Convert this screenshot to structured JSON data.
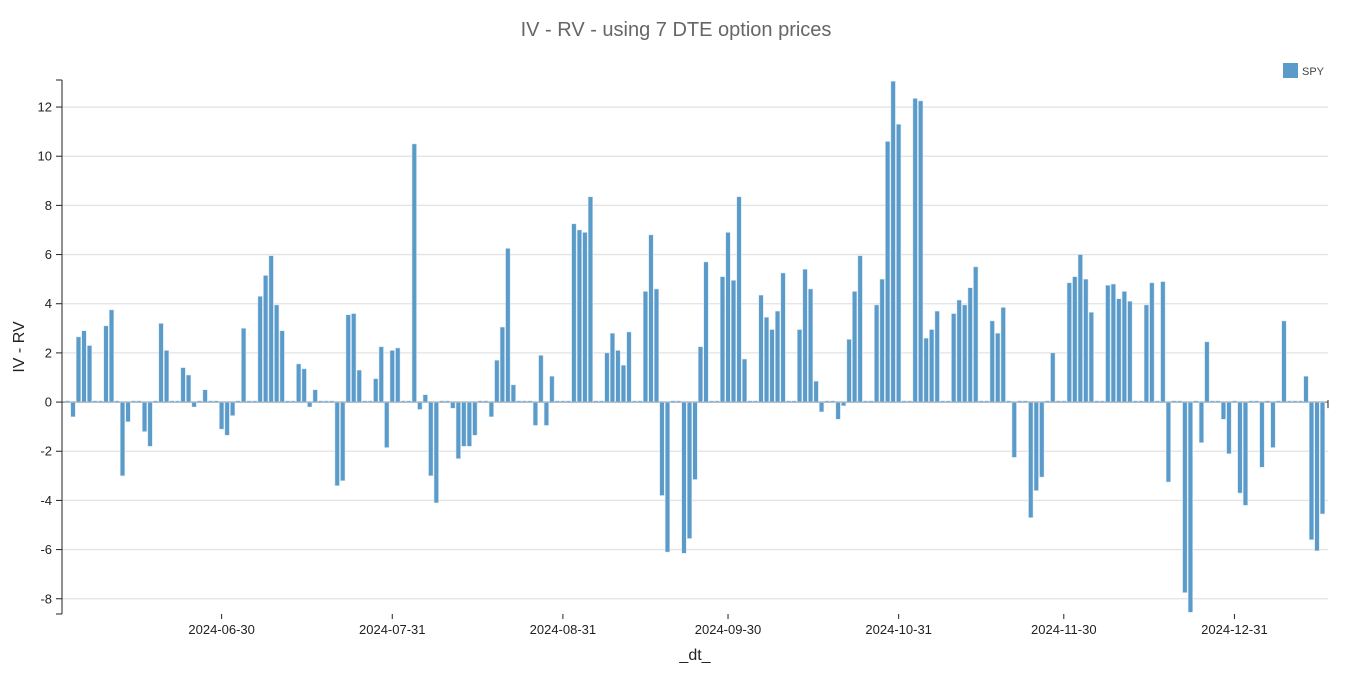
{
  "chart_data": {
    "type": "bar",
    "title": "IV - RV  - using 7 DTE option prices",
    "xlabel": "_dt_",
    "ylabel": "IV - RV",
    "legend": [
      {
        "name": "SPY",
        "color": "#5b9bca"
      }
    ],
    "legend_placement": "top-right",
    "grid": "horizontal",
    "ylim": [
      -8.62,
      13.1
    ],
    "xlim": [
      "2024-06-01",
      "2025-01-17"
    ],
    "yticks": [
      -8,
      -6,
      -4,
      -2,
      0,
      2,
      4,
      6,
      8,
      10,
      12
    ],
    "xticks": [
      "2024-06-30",
      "2024-07-31",
      "2024-08-31",
      "2024-09-30",
      "2024-10-31",
      "2024-11-30",
      "2024-12-31"
    ],
    "x_start": "2024-06-02",
    "x_step_days": 1,
    "series": [
      {
        "name": "SPY",
        "values": [
          0.05,
          -0.6,
          2.65,
          2.9,
          2.3,
          0,
          0,
          3.1,
          3.75,
          0,
          -3.0,
          -0.8,
          0,
          0,
          -1.2,
          -1.8,
          0,
          3.2,
          2.1,
          0,
          0,
          1.4,
          1.1,
          -0.2,
          0,
          0.5,
          0,
          0,
          -1.1,
          -1.35,
          -0.55,
          0,
          3.0,
          0,
          0,
          4.3,
          5.15,
          5.95,
          3.95,
          2.9,
          0,
          0,
          1.55,
          1.35,
          -0.2,
          0.5,
          0.05,
          0,
          0,
          -3.4,
          -3.2,
          3.55,
          3.6,
          1.3,
          0,
          0,
          0.95,
          2.25,
          -1.85,
          2.1,
          2.2,
          0,
          0,
          10.5,
          -0.3,
          0.3,
          -3.0,
          -4.1,
          0,
          0,
          -0.25,
          -2.3,
          -1.8,
          -1.8,
          -1.35,
          0,
          0,
          -0.6,
          1.7,
          3.05,
          6.25,
          0.7,
          0,
          0,
          0,
          -0.95,
          1.9,
          -0.95,
          1.05,
          0,
          0,
          0,
          7.25,
          7.0,
          6.9,
          8.35,
          0,
          0,
          2.0,
          2.8,
          2.1,
          1.5,
          2.85,
          0,
          0,
          4.5,
          6.8,
          4.6,
          -3.8,
          -6.1,
          0,
          0,
          -6.15,
          -5.55,
          -3.15,
          2.25,
          5.7,
          0,
          0,
          5.1,
          6.9,
          4.95,
          8.35,
          1.75,
          0,
          0,
          4.35,
          3.45,
          2.95,
          3.7,
          5.25,
          0,
          0,
          2.95,
          5.4,
          4.6,
          0.85,
          -0.4,
          0,
          0,
          -0.7,
          -0.15,
          2.55,
          4.5,
          5.95,
          0,
          0,
          3.95,
          5.0,
          10.6,
          13.05,
          11.3,
          0,
          0,
          12.35,
          12.25,
          2.6,
          2.95,
          3.7,
          0,
          0,
          3.6,
          4.15,
          3.95,
          4.65,
          5.5,
          0,
          0,
          3.3,
          2.8,
          3.85,
          0,
          -2.25,
          0,
          0,
          -4.7,
          -3.6,
          -3.05,
          0,
          2.0,
          0,
          0,
          4.85,
          5.1,
          6.0,
          5.0,
          3.65,
          0,
          0,
          4.75,
          4.8,
          4.2,
          4.5,
          4.1,
          0,
          0,
          3.95,
          4.85,
          0,
          4.9,
          -3.25,
          0,
          0,
          -7.75,
          -8.55,
          0,
          -1.65,
          2.45,
          0,
          0,
          -0.7,
          -2.1,
          0,
          -3.7,
          -4.2,
          0,
          0,
          -2.65,
          0,
          -1.85,
          0,
          3.3,
          0,
          0,
          0,
          1.05,
          -5.6,
          -6.05,
          -4.55
        ]
      }
    ]
  }
}
